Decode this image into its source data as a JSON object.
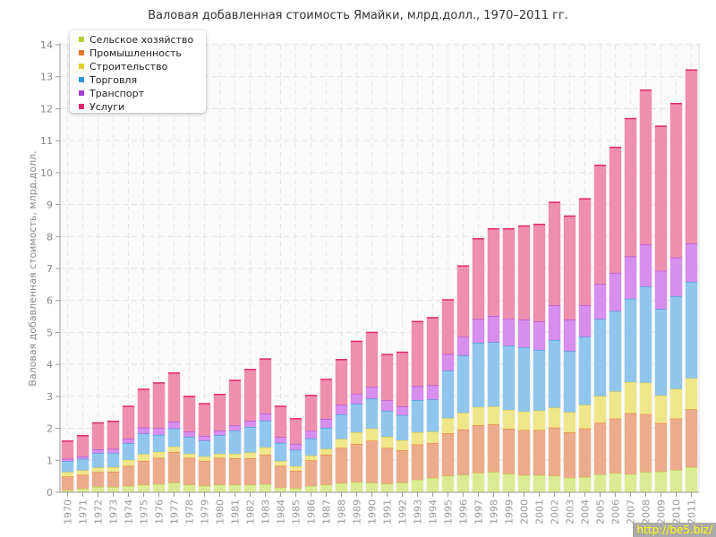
{
  "chart_data": {
    "type": "bar",
    "stacked": true,
    "title": "Валовая добавленная стоимость Ямайки, млрд.долл., 1970–2011 гг.",
    "xlabel": "",
    "ylabel": "Валовая добавленная стоимость, млрд.долл.",
    "ylim": [
      0,
      14
    ],
    "yticks": [
      "0",
      "1",
      "2",
      "3",
      "4",
      "5",
      "6",
      "7",
      "8",
      "9",
      "10",
      "11",
      "12",
      "13",
      "14"
    ],
    "grid": true,
    "legend_position": "top-left",
    "categories": [
      "1970",
      "1971",
      "1972",
      "1973",
      "1974",
      "1975",
      "1976",
      "1977",
      "1978",
      "1979",
      "1980",
      "1981",
      "1982",
      "1983",
      "1984",
      "1985",
      "1986",
      "1987",
      "1988",
      "1989",
      "1990",
      "1991",
      "1992",
      "1993",
      "1994",
      "1995",
      "1996",
      "1997",
      "1998",
      "1999",
      "2000",
      "2001",
      "2002",
      "2003",
      "2004",
      "2005",
      "2006",
      "2007",
      "2008",
      "2009",
      "2010",
      "2011"
    ],
    "series": [
      {
        "name": "Сельское хозяйство",
        "color": "#b5d334",
        "fill": "#dbeb93",
        "values": [
          0.07,
          0.12,
          0.17,
          0.17,
          0.2,
          0.24,
          0.26,
          0.3,
          0.24,
          0.21,
          0.24,
          0.24,
          0.24,
          0.26,
          0.15,
          0.13,
          0.2,
          0.24,
          0.29,
          0.32,
          0.3,
          0.27,
          0.3,
          0.4,
          0.45,
          0.52,
          0.55,
          0.61,
          0.64,
          0.58,
          0.54,
          0.54,
          0.52,
          0.46,
          0.48,
          0.56,
          0.6,
          0.57,
          0.64,
          0.65,
          0.7,
          0.79
        ]
      },
      {
        "name": "Промышленность",
        "color": "#e8742a",
        "fill": "#ecac8c",
        "values": [
          0.43,
          0.43,
          0.47,
          0.48,
          0.63,
          0.75,
          0.82,
          0.97,
          0.84,
          0.78,
          0.84,
          0.83,
          0.83,
          0.92,
          0.68,
          0.55,
          0.8,
          0.94,
          1.1,
          1.2,
          1.32,
          1.12,
          1.02,
          1.1,
          1.1,
          1.33,
          1.42,
          1.5,
          1.49,
          1.41,
          1.41,
          1.41,
          1.51,
          1.42,
          1.52,
          1.62,
          1.71,
          1.91,
          1.81,
          1.52,
          1.61,
          1.81
        ]
      },
      {
        "name": "Строительство",
        "color": "#e2cc2c",
        "fill": "#efe68a",
        "values": [
          0.14,
          0.14,
          0.14,
          0.14,
          0.19,
          0.21,
          0.19,
          0.16,
          0.13,
          0.13,
          0.13,
          0.14,
          0.18,
          0.23,
          0.15,
          0.14,
          0.15,
          0.18,
          0.28,
          0.36,
          0.38,
          0.35,
          0.31,
          0.38,
          0.35,
          0.47,
          0.52,
          0.56,
          0.56,
          0.59,
          0.58,
          0.61,
          0.62,
          0.63,
          0.74,
          0.83,
          0.85,
          0.97,
          0.98,
          0.86,
          0.93,
          0.97
        ]
      },
      {
        "name": "Торговля",
        "color": "#2b95dd",
        "fill": "#90c6ee",
        "values": [
          0.34,
          0.36,
          0.45,
          0.44,
          0.52,
          0.64,
          0.53,
          0.57,
          0.53,
          0.5,
          0.58,
          0.72,
          0.8,
          0.83,
          0.57,
          0.51,
          0.54,
          0.66,
          0.77,
          0.89,
          0.93,
          0.81,
          0.79,
          1.01,
          1.01,
          1.49,
          1.79,
          2.01,
          2.01,
          2.01,
          2.01,
          1.9,
          2.12,
          1.91,
          2.13,
          2.41,
          2.51,
          2.61,
          3.01,
          2.71,
          2.9,
          3.02
        ]
      },
      {
        "name": "Транспорт",
        "color": "#a63ed8",
        "fill": "#d78eec",
        "values": [
          0.07,
          0.08,
          0.12,
          0.13,
          0.14,
          0.19,
          0.21,
          0.21,
          0.16,
          0.15,
          0.14,
          0.16,
          0.19,
          0.23,
          0.18,
          0.18,
          0.24,
          0.28,
          0.3,
          0.32,
          0.37,
          0.33,
          0.27,
          0.43,
          0.44,
          0.52,
          0.59,
          0.74,
          0.82,
          0.84,
          0.87,
          0.89,
          1.09,
          0.99,
          0.99,
          1.1,
          1.2,
          1.32,
          1.32,
          1.19,
          1.21,
          1.2
        ]
      },
      {
        "name": "Услуги",
        "color": "#e0286e",
        "fill": "#ee8fae",
        "values": [
          0.55,
          0.64,
          0.82,
          0.86,
          1.01,
          1.19,
          1.41,
          1.52,
          1.1,
          1.0,
          1.13,
          1.41,
          1.6,
          1.7,
          0.96,
          0.79,
          1.1,
          1.23,
          1.41,
          1.63,
          1.7,
          1.43,
          1.69,
          2.02,
          2.11,
          1.69,
          2.21,
          2.51,
          2.72,
          2.81,
          2.92,
          3.03,
          3.21,
          3.23,
          3.32,
          3.71,
          3.92,
          4.31,
          4.82,
          4.52,
          4.81,
          5.42
        ]
      }
    ]
  },
  "watermark": "http://be5.biz/"
}
